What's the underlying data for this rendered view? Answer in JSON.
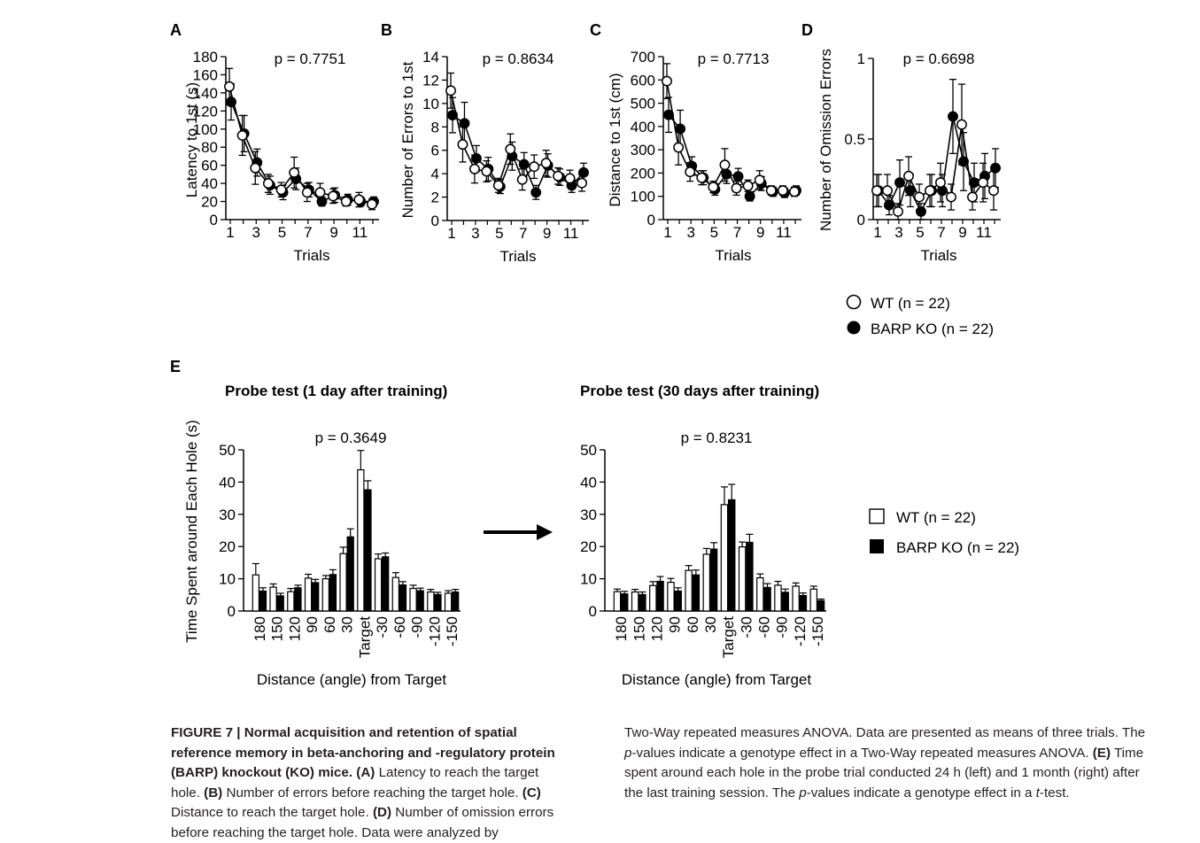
{
  "chart_data": [
    {
      "panel": "A",
      "type": "line",
      "p_value": "p = 0.7751",
      "xlabel": "Trials",
      "ylabel": "Latency to 1st (s)",
      "ylim": [
        0,
        180
      ],
      "yticks": [
        0,
        20,
        40,
        60,
        80,
        100,
        120,
        140,
        160,
        180
      ],
      "xticks": [
        1,
        3,
        5,
        7,
        9,
        11
      ],
      "x": [
        1,
        2,
        3,
        4,
        5,
        6,
        7,
        8,
        9,
        10,
        11,
        12
      ],
      "series": [
        {
          "name": "WT (n = 22)",
          "marker": "open-circle",
          "values": [
            147,
            93,
            57,
            40,
            33,
            52,
            30,
            30,
            26,
            20,
            22,
            17
          ],
          "errors": [
            20,
            22,
            18,
            10,
            8,
            17,
            10,
            10,
            8,
            5,
            8,
            6
          ]
        },
        {
          "name": "BARP KO (n = 22)",
          "marker": "filled-circle",
          "values": [
            130,
            95,
            63,
            38,
            30,
            45,
            33,
            20,
            27,
            22,
            20,
            20
          ],
          "errors": [
            20,
            20,
            15,
            10,
            8,
            12,
            8,
            5,
            8,
            6,
            5,
            5
          ]
        }
      ]
    },
    {
      "panel": "B",
      "type": "line",
      "p_value": "p = 0.8634",
      "xlabel": "Trials",
      "ylabel": "Number of Errors to 1st",
      "ylim": [
        0,
        14
      ],
      "yticks": [
        0,
        2,
        4,
        6,
        8,
        10,
        12,
        14
      ],
      "xticks": [
        1,
        3,
        5,
        7,
        9,
        11
      ],
      "x": [
        1,
        2,
        3,
        4,
        5,
        6,
        7,
        8,
        9,
        10,
        11,
        12
      ],
      "series": [
        {
          "name": "WT (n = 22)",
          "marker": "open-circle",
          "values": [
            11.1,
            6.5,
            4.4,
            4.2,
            3.0,
            6.1,
            3.5,
            4.6,
            4.9,
            3.8,
            3.6,
            3.2
          ],
          "errors": [
            1.5,
            1.5,
            1.2,
            0.9,
            0.6,
            1.3,
            0.9,
            1.0,
            1.1,
            0.7,
            0.7,
            0.7
          ]
        },
        {
          "name": "BARP KO (n = 22)",
          "marker": "filled-circle",
          "values": [
            9.0,
            8.3,
            5.3,
            4.4,
            2.9,
            5.5,
            4.8,
            2.4,
            4.7,
            3.7,
            3.0,
            4.1
          ],
          "errors": [
            1.5,
            1.8,
            1.1,
            1.0,
            0.6,
            1.2,
            1.0,
            0.6,
            1.0,
            0.7,
            0.6,
            0.8
          ]
        }
      ]
    },
    {
      "panel": "C",
      "type": "line",
      "p_value": "p = 0.7713",
      "xlabel": "Trials",
      "ylabel": "Distance to 1st (cm)",
      "ylim": [
        0,
        700
      ],
      "yticks": [
        0,
        100,
        200,
        300,
        400,
        500,
        600,
        700
      ],
      "xticks": [
        1,
        3,
        5,
        7,
        9,
        11
      ],
      "x": [
        1,
        2,
        3,
        4,
        5,
        6,
        7,
        8,
        9,
        10,
        11,
        12
      ],
      "series": [
        {
          "name": "WT (n = 22)",
          "marker": "open-circle",
          "values": [
            595,
            310,
            205,
            180,
            140,
            235,
            135,
            145,
            170,
            125,
            125,
            120
          ],
          "errors": [
            75,
            75,
            40,
            30,
            25,
            70,
            30,
            25,
            40,
            20,
            20,
            20
          ]
        },
        {
          "name": "BARP KO (n = 22)",
          "marker": "filled-circle",
          "values": [
            450,
            390,
            230,
            180,
            130,
            195,
            185,
            100,
            155,
            120,
            115,
            125
          ],
          "errors": [
            75,
            80,
            40,
            30,
            25,
            40,
            35,
            20,
            30,
            20,
            20,
            20
          ]
        }
      ]
    },
    {
      "panel": "D",
      "type": "line",
      "p_value": "p = 0.6698",
      "xlabel": "Trials",
      "ylabel": "Number of Omission Errors",
      "ylim": [
        0,
        1
      ],
      "yticks": [
        0,
        0.5,
        1
      ],
      "xticks": [
        1,
        3,
        5,
        7,
        9,
        11
      ],
      "x": [
        1,
        2,
        3,
        4,
        5,
        6,
        7,
        8,
        9,
        10,
        11,
        12
      ],
      "series": [
        {
          "name": "WT (n = 22)",
          "marker": "open-circle",
          "values": [
            0.18,
            0.18,
            0.05,
            0.27,
            0.14,
            0.18,
            0.23,
            0.14,
            0.59,
            0.14,
            0.23,
            0.18
          ],
          "errors": [
            0.1,
            0.1,
            0.05,
            0.12,
            0.08,
            0.1,
            0.12,
            0.08,
            0.25,
            0.08,
            0.12,
            0.12
          ]
        },
        {
          "name": "BARP KO (n = 22)",
          "marker": "filled-circle",
          "values": [
            0.18,
            0.09,
            0.23,
            0.18,
            0.05,
            0.18,
            0.18,
            0.64,
            0.36,
            0.23,
            0.27,
            0.32
          ],
          "errors": [
            0.1,
            0.06,
            0.14,
            0.1,
            0.05,
            0.1,
            0.1,
            0.23,
            0.18,
            0.12,
            0.14,
            0.12
          ]
        }
      ]
    },
    {
      "panel": "E",
      "type": "bar",
      "title": "Probe test (1 day after training)",
      "p_value": "p = 0.3649",
      "xlabel": "Distance (angle) from Target",
      "ylabel": "Time Spent around Each Hole (s)",
      "ylim": [
        0,
        50
      ],
      "yticks": [
        0,
        10,
        20,
        30,
        40,
        50
      ],
      "categories": [
        "180",
        "150",
        "120",
        "90",
        "60",
        "30",
        "Target",
        "-30",
        "-60",
        "-90",
        "-120",
        "-150"
      ],
      "series": [
        {
          "name": "WT (n = 22)",
          "fill": "white",
          "values": [
            11.2,
            7.4,
            6.0,
            10.2,
            10.0,
            17.8,
            43.8,
            16.2,
            10.4,
            7.0,
            5.9,
            5.5
          ],
          "errors": [
            3.5,
            1.0,
            1.0,
            1.2,
            1.0,
            2.0,
            6.0,
            1.5,
            1.5,
            1.0,
            0.8,
            0.8
          ]
        },
        {
          "name": "BARP KO (n = 22)",
          "fill": "black",
          "values": [
            6.2,
            4.7,
            7.2,
            8.8,
            11.3,
            23.0,
            37.6,
            16.8,
            8.1,
            6.3,
            5.1,
            5.9
          ],
          "errors": [
            1.0,
            0.8,
            0.8,
            1.0,
            1.5,
            2.5,
            2.8,
            1.2,
            1.0,
            0.8,
            0.7,
            0.8
          ]
        }
      ]
    },
    {
      "panel": "E",
      "type": "bar",
      "title": "Probe test (30 days after training)",
      "p_value": "p = 0.8231",
      "xlabel": "Distance (angle) from Target",
      "ylabel": "",
      "ylim": [
        0,
        50
      ],
      "yticks": [
        0,
        10,
        20,
        30,
        40,
        50
      ],
      "categories": [
        "180",
        "150",
        "120",
        "90",
        "60",
        "30",
        "Target",
        "-30",
        "-60",
        "-90",
        "-120",
        "-150"
      ],
      "series": [
        {
          "name": "WT (n = 22)",
          "fill": "white",
          "values": [
            6.0,
            5.9,
            7.9,
            8.9,
            12.6,
            17.6,
            33.0,
            19.9,
            10.3,
            8.0,
            7.7,
            6.8
          ],
          "errors": [
            0.8,
            0.8,
            1.2,
            1.2,
            1.5,
            1.8,
            5.5,
            1.5,
            1.2,
            1.2,
            1.0,
            0.9
          ]
        },
        {
          "name": "BARP KO (n = 22)",
          "fill": "black",
          "values": [
            5.3,
            5.1,
            9.2,
            6.2,
            11.2,
            19.2,
            34.5,
            21.3,
            7.3,
            5.8,
            4.8,
            3.2
          ],
          "errors": [
            0.8,
            0.8,
            1.5,
            1.0,
            1.5,
            2.0,
            4.8,
            2.5,
            1.2,
            1.0,
            0.8,
            0.5
          ]
        }
      ]
    }
  ],
  "panel_letters": [
    "A",
    "B",
    "C",
    "D",
    "E"
  ],
  "legend_line": {
    "wt": "WT (n = 22)",
    "ko": "BARP KO (n = 22)"
  },
  "legend_bar": {
    "wt": "WT (n = 22)",
    "ko": "BARP KO (n = 22)"
  },
  "caption": {
    "figure_label": "FIGURE 7 | Normal acquisition and retention of spatial reference memory in beta-anchoring and -regulatory protein (BARP) knockout (KO) mice.",
    "a_label": "(A)",
    "a_text": " Latency to reach the target hole. ",
    "b_label": "(B)",
    "b_text": " Number of errors before reaching the target hole. ",
    "c_label": "(C)",
    "c_text": " Distance to reach the target hole. ",
    "d_label": "(D)",
    "d_text": " Number of omission errors before reaching the target hole. Data were analyzed by",
    "right_1": "Two-Way repeated measures ANOVA. Data are presented as means of three trials. The ",
    "right_p1": "p",
    "right_2": "-values indicate a genotype effect in a Two-Way repeated measures ANOVA. ",
    "e_label": "(E)",
    "right_3": " Time spent around each hole in the probe trial conducted 24 h (left) and 1 month (right) after the last training session. The ",
    "right_p2": "p",
    "right_4": "-values indicate a genotype effect in a ",
    "right_t": "t",
    "right_5": "-test."
  }
}
